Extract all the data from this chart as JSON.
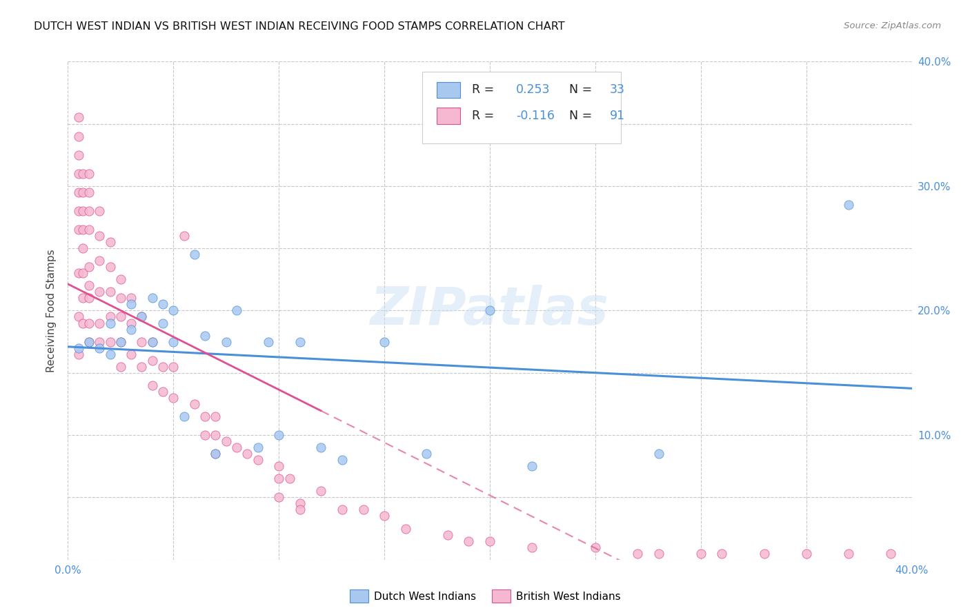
{
  "title": "DUTCH WEST INDIAN VS BRITISH WEST INDIAN RECEIVING FOOD STAMPS CORRELATION CHART",
  "source": "Source: ZipAtlas.com",
  "ylabel": "Receiving Food Stamps",
  "xlim": [
    0.0,
    0.4
  ],
  "ylim": [
    0.0,
    0.4
  ],
  "xticks": [
    0.0,
    0.05,
    0.1,
    0.15,
    0.2,
    0.25,
    0.3,
    0.35,
    0.4
  ],
  "yticks": [
    0.0,
    0.05,
    0.1,
    0.15,
    0.2,
    0.25,
    0.3,
    0.35,
    0.4
  ],
  "ytick_labels_right": [
    "",
    "",
    "10.0%",
    "",
    "20.0%",
    "",
    "30.0%",
    "",
    "40.0%"
  ],
  "xtick_labels": [
    "0.0%",
    "",
    "",
    "",
    "",
    "",
    "",
    "",
    "40.0%"
  ],
  "watermark": "ZIPatlas",
  "color_dutch": "#a8c8f0",
  "color_british": "#f5b8d0",
  "color_dutch_line": "#4a90d9",
  "color_british_line": "#e05090",
  "background_color": "#ffffff",
  "dutch_R": 0.253,
  "dutch_N": 33,
  "british_R": -0.116,
  "british_N": 91,
  "dutch_scatter_x": [
    0.005,
    0.01,
    0.015,
    0.02,
    0.02,
    0.025,
    0.03,
    0.03,
    0.035,
    0.04,
    0.04,
    0.045,
    0.045,
    0.05,
    0.05,
    0.055,
    0.06,
    0.065,
    0.07,
    0.075,
    0.08,
    0.09,
    0.095,
    0.1,
    0.11,
    0.12,
    0.13,
    0.15,
    0.17,
    0.2,
    0.22,
    0.28,
    0.37
  ],
  "dutch_scatter_y": [
    0.17,
    0.175,
    0.17,
    0.19,
    0.165,
    0.175,
    0.205,
    0.185,
    0.195,
    0.21,
    0.175,
    0.19,
    0.205,
    0.2,
    0.175,
    0.115,
    0.245,
    0.18,
    0.085,
    0.175,
    0.2,
    0.09,
    0.175,
    0.1,
    0.175,
    0.09,
    0.08,
    0.175,
    0.085,
    0.2,
    0.075,
    0.085,
    0.285
  ],
  "british_scatter_x": [
    0.005,
    0.005,
    0.005,
    0.005,
    0.005,
    0.005,
    0.005,
    0.005,
    0.005,
    0.005,
    0.007,
    0.007,
    0.007,
    0.007,
    0.007,
    0.007,
    0.007,
    0.007,
    0.01,
    0.01,
    0.01,
    0.01,
    0.01,
    0.01,
    0.01,
    0.01,
    0.01,
    0.015,
    0.015,
    0.015,
    0.015,
    0.015,
    0.015,
    0.02,
    0.02,
    0.02,
    0.02,
    0.02,
    0.025,
    0.025,
    0.025,
    0.025,
    0.025,
    0.03,
    0.03,
    0.03,
    0.035,
    0.035,
    0.035,
    0.04,
    0.04,
    0.04,
    0.045,
    0.045,
    0.05,
    0.05,
    0.055,
    0.06,
    0.065,
    0.065,
    0.07,
    0.07,
    0.07,
    0.075,
    0.08,
    0.085,
    0.09,
    0.1,
    0.1,
    0.1,
    0.105,
    0.11,
    0.11,
    0.12,
    0.13,
    0.14,
    0.15,
    0.16,
    0.18,
    0.19,
    0.2,
    0.22,
    0.25,
    0.27,
    0.28,
    0.3,
    0.31,
    0.33,
    0.35,
    0.37,
    0.39
  ],
  "british_scatter_y": [
    0.355,
    0.34,
    0.325,
    0.31,
    0.295,
    0.28,
    0.265,
    0.23,
    0.195,
    0.165,
    0.31,
    0.295,
    0.28,
    0.265,
    0.25,
    0.23,
    0.21,
    0.19,
    0.31,
    0.295,
    0.28,
    0.265,
    0.235,
    0.22,
    0.21,
    0.19,
    0.175,
    0.28,
    0.26,
    0.24,
    0.215,
    0.19,
    0.175,
    0.255,
    0.235,
    0.215,
    0.195,
    0.175,
    0.225,
    0.21,
    0.195,
    0.175,
    0.155,
    0.21,
    0.19,
    0.165,
    0.195,
    0.175,
    0.155,
    0.175,
    0.16,
    0.14,
    0.155,
    0.135,
    0.155,
    0.13,
    0.26,
    0.125,
    0.115,
    0.1,
    0.115,
    0.1,
    0.085,
    0.095,
    0.09,
    0.085,
    0.08,
    0.075,
    0.065,
    0.05,
    0.065,
    0.045,
    0.04,
    0.055,
    0.04,
    0.04,
    0.035,
    0.025,
    0.02,
    0.015,
    0.015,
    0.01,
    0.01,
    0.005,
    0.005,
    0.005,
    0.005,
    0.005,
    0.005,
    0.005,
    0.005
  ]
}
